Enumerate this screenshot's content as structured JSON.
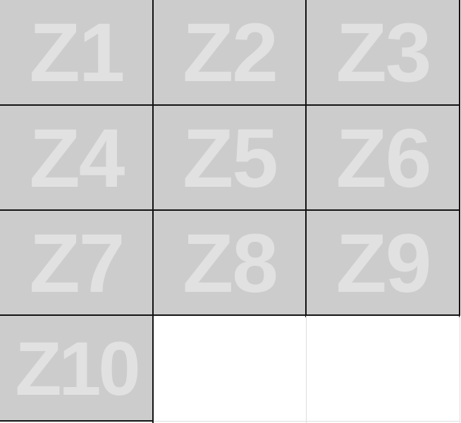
{
  "zones": [
    {
      "label": "Z1"
    },
    {
      "label": "Z2"
    },
    {
      "label": "Z3"
    },
    {
      "label": "Z4"
    },
    {
      "label": "Z5"
    },
    {
      "label": "Z6"
    },
    {
      "label": "Z7"
    },
    {
      "label": "Z8"
    },
    {
      "label": "Z9"
    },
    {
      "label": "Z10"
    }
  ],
  "colors": {
    "tile_fill": "#cccccc",
    "label_text": "#e1e1e1",
    "grid_line": "#111111",
    "empty_line": "#dedede",
    "background": "#ffffff"
  }
}
